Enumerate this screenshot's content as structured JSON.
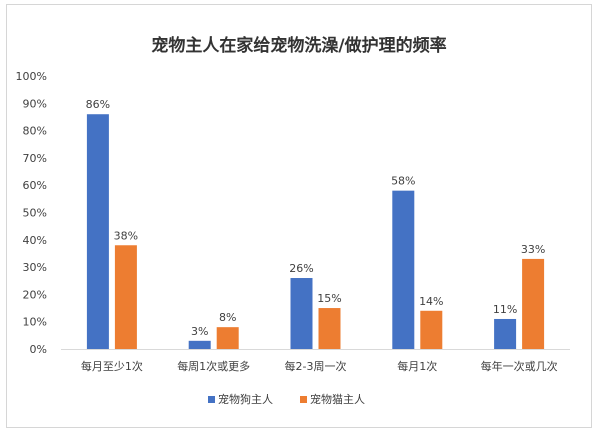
{
  "chart_data": {
    "type": "bar",
    "title": "宠物主人在家给宠物洗澡/做护理的频率",
    "categories": [
      "每月至少1次",
      "每周1次或更多",
      "每2-3周一次",
      "每月1次",
      "每年一次或几次"
    ],
    "series": [
      {
        "name": "宠物狗主人",
        "values": [
          86,
          3,
          26,
          58,
          11
        ],
        "color": "#4472C4"
      },
      {
        "name": "宠物猫主人",
        "values": [
          38,
          8,
          15,
          14,
          33
        ],
        "color": "#ED7D31"
      }
    ],
    "ylim": [
      0,
      100
    ],
    "yticks": [
      "0%",
      "10%",
      "20%",
      "30%",
      "40%",
      "50%",
      "60%",
      "70%",
      "80%",
      "90%",
      "100%"
    ],
    "value_suffix": "%",
    "grid": false,
    "legend_position": "bottom"
  }
}
